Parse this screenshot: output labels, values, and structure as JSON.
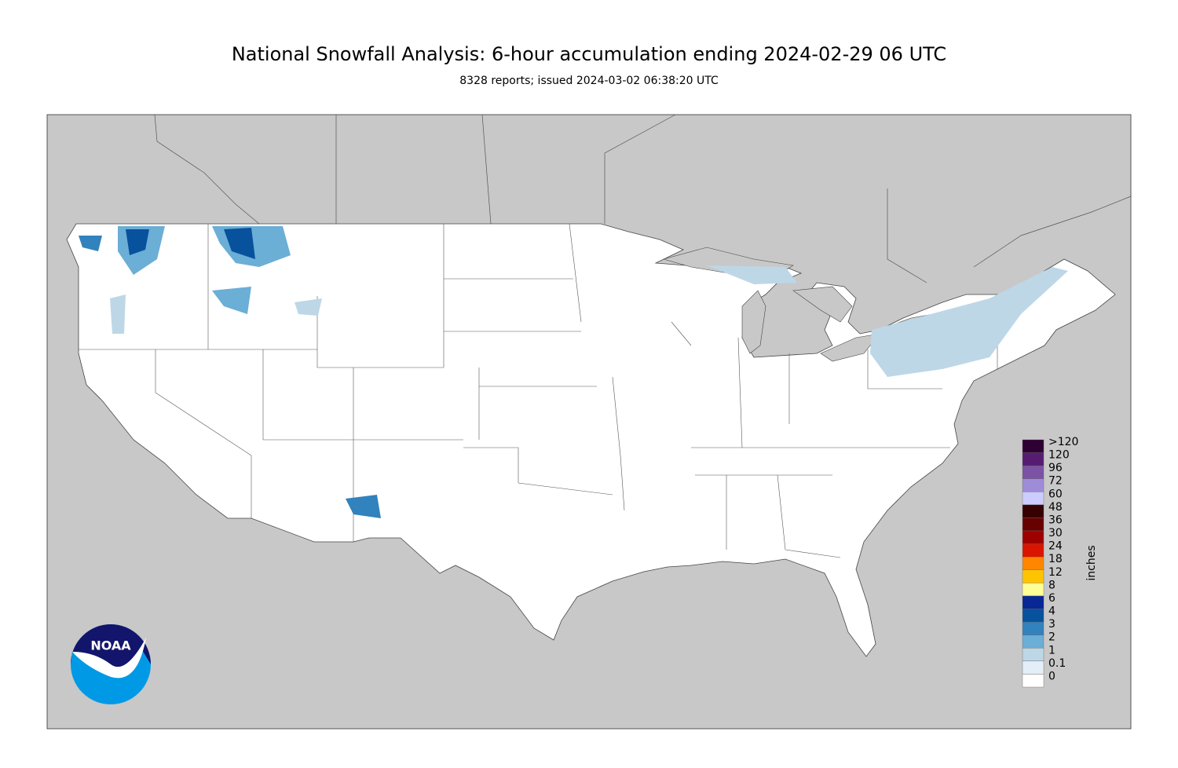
{
  "header": {
    "title": "National Snowfall Analysis: 6-hour accumulation ending 2024-02-29 06 UTC",
    "subtitle": "8328 reports; issued 2024-03-02 06:38:20 UTC"
  },
  "legend": {
    "unit": "inches",
    "items": [
      {
        "label": ">120",
        "color": "#2e0033"
      },
      {
        "label": "120",
        "color": "#561c72"
      },
      {
        "label": "96",
        "color": "#7c52a5"
      },
      {
        "label": "72",
        "color": "#9f8cd8"
      },
      {
        "label": "60",
        "color": "#ccccff"
      },
      {
        "label": "48",
        "color": "#360000"
      },
      {
        "label": "36",
        "color": "#690000"
      },
      {
        "label": "30",
        "color": "#9e0000"
      },
      {
        "label": "24",
        "color": "#db1400"
      },
      {
        "label": "18",
        "color": "#ff8700"
      },
      {
        "label": "12",
        "color": "#ffc400"
      },
      {
        "label": "8",
        "color": "#ffff96"
      },
      {
        "label": "6",
        "color": "#082694"
      },
      {
        "label": "4",
        "color": "#08519c"
      },
      {
        "label": "3",
        "color": "#3182bd"
      },
      {
        "label": "2",
        "color": "#6baed6"
      },
      {
        "label": "1",
        "color": "#bdd7e7"
      },
      {
        "label": "0.1",
        "color": "#e4eef9"
      },
      {
        "label": "0",
        "color": "#ffffff"
      }
    ]
  },
  "logo": {
    "text": "NOAA"
  }
}
